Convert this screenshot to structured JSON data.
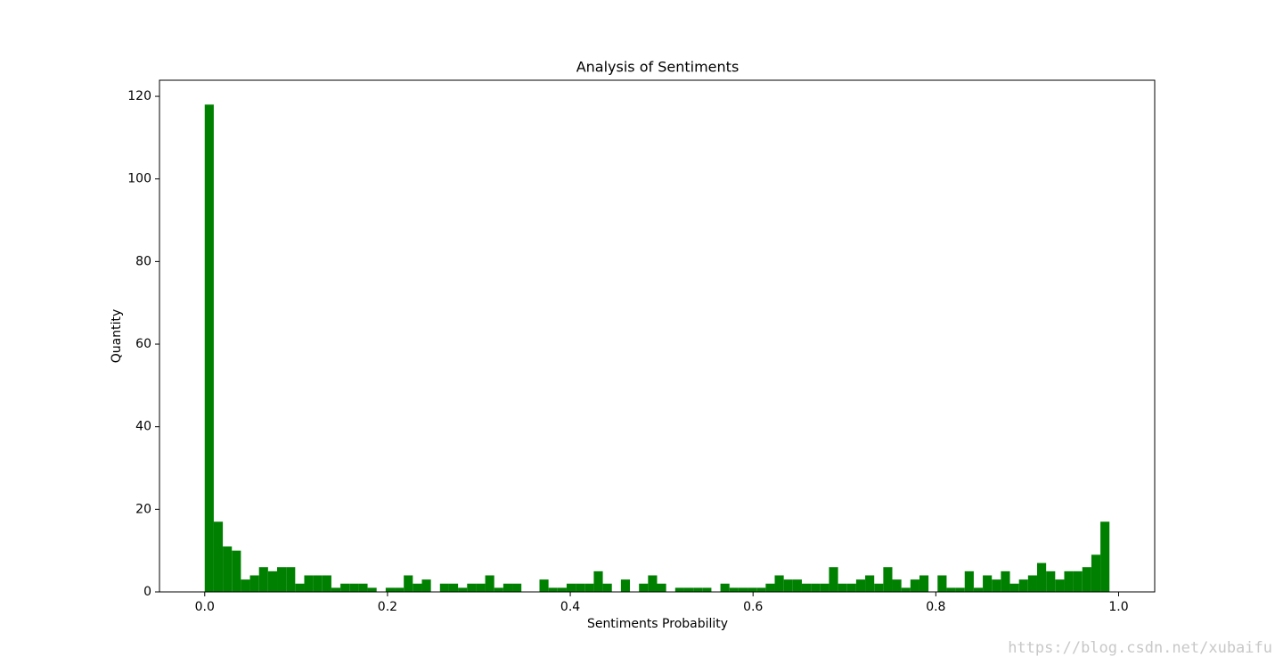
{
  "chart_data": {
    "type": "histogram",
    "title": "Analysis of Sentiments",
    "x_label": "Sentiments Probability",
    "y_label": "Quantity",
    "watermark": "https://blog.csdn.net/xubaifu",
    "color": "#008000",
    "bins": [
      0,
      0.0099,
      0.0198,
      0.0297,
      0.0396,
      0.0495,
      0.0594,
      0.0693,
      0.0792,
      0.0891,
      0.099,
      0.1089,
      0.1188,
      0.1287,
      0.1386,
      0.1485,
      0.1584,
      0.1683,
      0.1782,
      0.1881,
      0.198,
      0.2079,
      0.2178,
      0.2277,
      0.2376,
      0.2475,
      0.2574,
      0.2673,
      0.2772,
      0.2871,
      0.297,
      0.3069,
      0.3168,
      0.3267,
      0.3366,
      0.3465,
      0.3564,
      0.3663,
      0.3762,
      0.3861,
      0.396,
      0.4059,
      0.4158,
      0.4257,
      0.4356,
      0.4455,
      0.4554,
      0.4653,
      0.4752,
      0.4851,
      0.495,
      0.5049,
      0.5148,
      0.5247,
      0.5346,
      0.5445,
      0.5544,
      0.5643,
      0.5742,
      0.5841,
      0.594,
      0.6039,
      0.6138,
      0.6237,
      0.6336,
      0.6435,
      0.6534,
      0.6633,
      0.6732,
      0.6831,
      0.693,
      0.7029,
      0.7128,
      0.7227,
      0.7326,
      0.7425,
      0.7524,
      0.7623,
      0.7722,
      0.7821,
      0.792,
      0.8019,
      0.8118,
      0.8217,
      0.8316,
      0.8415,
      0.8514,
      0.8613,
      0.8712,
      0.8811,
      0.891,
      0.9009,
      0.9108,
      0.9207,
      0.9306,
      0.9405,
      0.9504,
      0.9603,
      0.9702,
      0.9801,
      0.99
    ],
    "values": [
      118,
      17,
      11,
      10,
      3,
      4,
      6,
      5,
      6,
      6,
      2,
      4,
      4,
      4,
      1,
      2,
      2,
      2,
      1,
      0,
      1,
      1,
      4,
      2,
      3,
      0,
      2,
      2,
      1,
      2,
      2,
      4,
      1,
      2,
      2,
      0,
      0,
      3,
      1,
      1,
      2,
      2,
      2,
      5,
      2,
      0,
      3,
      0,
      2,
      4,
      2,
      0,
      1,
      1,
      1,
      1,
      0,
      2,
      1,
      1,
      1,
      1,
      2,
      4,
      3,
      3,
      2,
      2,
      2,
      6,
      2,
      2,
      3,
      4,
      2,
      6,
      3,
      1,
      3,
      4,
      0,
      4,
      1,
      1,
      5,
      1,
      4,
      3,
      5,
      2,
      3,
      4,
      7,
      5,
      3,
      5,
      5,
      6,
      9,
      17
    ],
    "xlim": [
      -0.0495,
      1.0395
    ],
    "ylim": [
      0,
      123.9
    ],
    "xticks": [
      {
        "value": 0,
        "label": "0.0"
      },
      0.2,
      0.4,
      0.6,
      0.8,
      {
        "value": 1,
        "label": "1.0"
      }
    ],
    "yticks": [
      0,
      20,
      40,
      60,
      80,
      100,
      120
    ]
  }
}
